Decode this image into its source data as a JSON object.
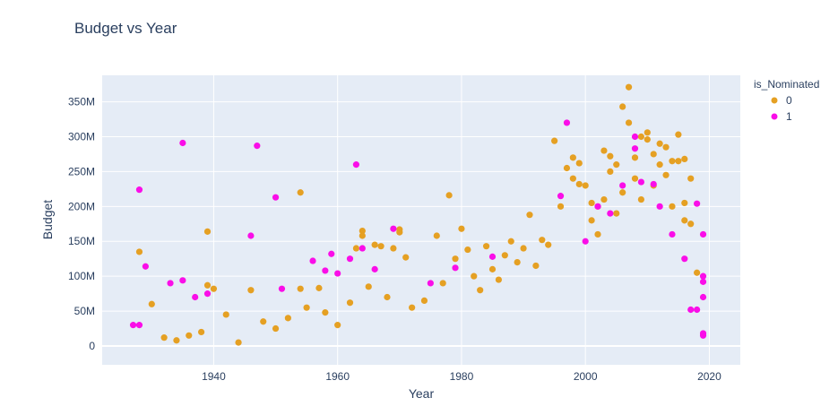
{
  "chart_data": {
    "type": "scatter",
    "title": "Budget vs Year",
    "xlabel": "Year",
    "ylabel": "Budget",
    "xlim": [
      1922,
      2025
    ],
    "ylim": [
      -27000000,
      388000000
    ],
    "x_ticks": [
      1940,
      1960,
      1980,
      2000,
      2020
    ],
    "y_ticks": [
      {
        "value": 0,
        "label": "0"
      },
      {
        "value": 50000000,
        "label": "50M"
      },
      {
        "value": 100000000,
        "label": "100M"
      },
      {
        "value": 150000000,
        "label": "150M"
      },
      {
        "value": 200000000,
        "label": "200M"
      },
      {
        "value": 250000000,
        "label": "250M"
      },
      {
        "value": 300000000,
        "label": "300M"
      },
      {
        "value": 350000000,
        "label": "350M"
      }
    ],
    "grid": true,
    "legend_title": "is_Nominated",
    "legend_position": "top-right",
    "series": [
      {
        "name": "0",
        "color": "#e5a023",
        "points": [
          [
            1928,
            135000000
          ],
          [
            1930,
            60000000
          ],
          [
            1939,
            164000000
          ],
          [
            1939,
            87000000
          ],
          [
            1940,
            82000000
          ],
          [
            1946,
            80000000
          ],
          [
            1954,
            220000000
          ],
          [
            1954,
            82000000
          ],
          [
            1957,
            83000000
          ],
          [
            1963,
            140000000
          ],
          [
            1964,
            165000000
          ],
          [
            1964,
            158000000
          ],
          [
            1966,
            145000000
          ],
          [
            1967,
            143000000
          ],
          [
            1969,
            140000000
          ],
          [
            1970,
            167000000
          ],
          [
            1970,
            163000000
          ],
          [
            1971,
            127000000
          ],
          [
            1976,
            158000000
          ],
          [
            1978,
            216000000
          ],
          [
            1980,
            168000000
          ],
          [
            1981,
            138000000
          ],
          [
            1984,
            143000000
          ],
          [
            1988,
            150000000
          ],
          [
            1991,
            188000000
          ],
          [
            1993,
            152000000
          ],
          [
            1994,
            145000000
          ],
          [
            1995,
            294000000
          ],
          [
            1996,
            200000000
          ],
          [
            1997,
            255000000
          ],
          [
            1998,
            240000000
          ],
          [
            1998,
            270000000
          ],
          [
            1999,
            262000000
          ],
          [
            1999,
            232000000
          ],
          [
            2000,
            230000000
          ],
          [
            2001,
            205000000
          ],
          [
            2002,
            200000000
          ],
          [
            2003,
            280000000
          ],
          [
            2004,
            272000000
          ],
          [
            2004,
            250000000
          ],
          [
            2005,
            260000000
          ],
          [
            2006,
            343000000
          ],
          [
            2007,
            371000000
          ],
          [
            2007,
            320000000
          ],
          [
            2008,
            270000000
          ],
          [
            2008,
            240000000
          ],
          [
            2009,
            300000000
          ],
          [
            2010,
            306000000
          ],
          [
            2010,
            296000000
          ],
          [
            2011,
            275000000
          ],
          [
            2012,
            290000000
          ],
          [
            2012,
            260000000
          ],
          [
            2013,
            285000000
          ],
          [
            2013,
            245000000
          ],
          [
            2014,
            265000000
          ],
          [
            2015,
            303000000
          ],
          [
            2015,
            265000000
          ],
          [
            2016,
            268000000
          ],
          [
            2016,
            205000000
          ],
          [
            2017,
            240000000
          ],
          [
            2017,
            175000000
          ],
          [
            2018,
            105000000
          ],
          [
            1932,
            12000000
          ],
          [
            1934,
            8000000
          ],
          [
            1936,
            15000000
          ],
          [
            1938,
            20000000
          ],
          [
            1942,
            45000000
          ],
          [
            1944,
            5000000
          ],
          [
            1948,
            35000000
          ],
          [
            1950,
            25000000
          ],
          [
            1952,
            40000000
          ],
          [
            1955,
            55000000
          ],
          [
            1958,
            48000000
          ],
          [
            1960,
            30000000
          ],
          [
            1962,
            62000000
          ],
          [
            1965,
            85000000
          ],
          [
            1968,
            70000000
          ],
          [
            1972,
            55000000
          ],
          [
            1974,
            65000000
          ],
          [
            1977,
            90000000
          ],
          [
            1979,
            125000000
          ],
          [
            1982,
            100000000
          ],
          [
            1983,
            80000000
          ],
          [
            1985,
            110000000
          ],
          [
            1986,
            95000000
          ],
          [
            1987,
            130000000
          ],
          [
            1989,
            120000000
          ],
          [
            1990,
            140000000
          ],
          [
            1992,
            115000000
          ],
          [
            2001,
            180000000
          ],
          [
            2002,
            160000000
          ],
          [
            2003,
            210000000
          ],
          [
            2005,
            190000000
          ],
          [
            2006,
            220000000
          ],
          [
            2009,
            210000000
          ],
          [
            2011,
            230000000
          ],
          [
            2014,
            200000000
          ],
          [
            2016,
            180000000
          ]
        ]
      },
      {
        "name": "1",
        "color": "#fa0ee8",
        "points": [
          [
            1927,
            30000000
          ],
          [
            1928,
            224000000
          ],
          [
            1928,
            30000000
          ],
          [
            1929,
            114000000
          ],
          [
            1933,
            90000000
          ],
          [
            1935,
            291000000
          ],
          [
            1935,
            94000000
          ],
          [
            1937,
            70000000
          ],
          [
            1939,
            75000000
          ],
          [
            1946,
            158000000
          ],
          [
            1947,
            287000000
          ],
          [
            1950,
            213000000
          ],
          [
            1951,
            82000000
          ],
          [
            1956,
            122000000
          ],
          [
            1958,
            108000000
          ],
          [
            1959,
            132000000
          ],
          [
            1960,
            104000000
          ],
          [
            1962,
            125000000
          ],
          [
            1963,
            260000000
          ],
          [
            1964,
            140000000
          ],
          [
            1966,
            110000000
          ],
          [
            1969,
            168000000
          ],
          [
            1975,
            90000000
          ],
          [
            1979,
            112000000
          ],
          [
            1985,
            128000000
          ],
          [
            1996,
            215000000
          ],
          [
            1997,
            320000000
          ],
          [
            2000,
            150000000
          ],
          [
            2002,
            200000000
          ],
          [
            2004,
            190000000
          ],
          [
            2006,
            230000000
          ],
          [
            2008,
            300000000
          ],
          [
            2008,
            283000000
          ],
          [
            2009,
            235000000
          ],
          [
            2011,
            232000000
          ],
          [
            2012,
            200000000
          ],
          [
            2014,
            160000000
          ],
          [
            2016,
            125000000
          ],
          [
            2018,
            204000000
          ],
          [
            2019,
            160000000
          ],
          [
            2019,
            100000000
          ],
          [
            2019,
            92000000
          ],
          [
            2019,
            70000000
          ],
          [
            2018,
            52000000
          ],
          [
            2017,
            52000000
          ],
          [
            2019,
            18000000
          ],
          [
            2019,
            15000000
          ]
        ]
      }
    ]
  }
}
